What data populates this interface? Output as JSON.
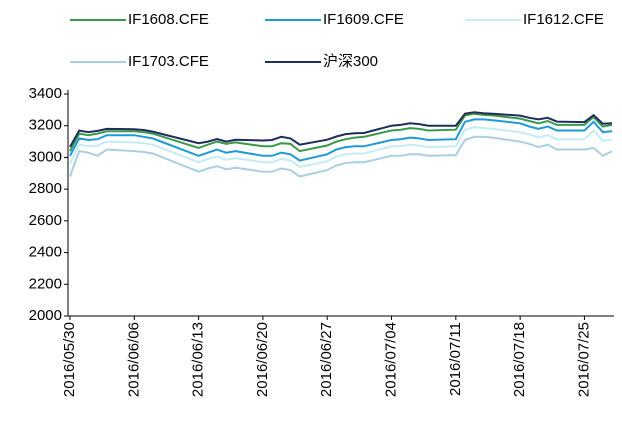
{
  "chart_data": {
    "type": "line",
    "x": [
      "2016/05/30",
      "2016/05/31",
      "2016/06/01",
      "2016/06/02",
      "2016/06/03",
      "2016/06/06",
      "2016/06/07",
      "2016/06/08",
      "2016/06/13",
      "2016/06/14",
      "2016/06/15",
      "2016/06/16",
      "2016/06/17",
      "2016/06/20",
      "2016/06/21",
      "2016/06/22",
      "2016/06/23",
      "2016/06/24",
      "2016/06/27",
      "2016/06/28",
      "2016/06/29",
      "2016/06/30",
      "2016/07/01",
      "2016/07/04",
      "2016/07/05",
      "2016/07/06",
      "2016/07/07",
      "2016/07/08",
      "2016/07/11",
      "2016/07/12",
      "2016/07/13",
      "2016/07/14",
      "2016/07/15",
      "2016/07/18",
      "2016/07/19",
      "2016/07/20",
      "2016/07/21",
      "2016/07/22",
      "2016/07/25",
      "2016/07/26",
      "2016/07/27",
      "2016/07/28"
    ],
    "xlim": [
      "2016/05/30",
      "2016/07/28"
    ],
    "xticks": [
      "2016/05/30",
      "2016/06/06",
      "2016/06/13",
      "2016/06/20",
      "2016/06/27",
      "2016/07/04",
      "2016/07/11",
      "2016/07/18",
      "2016/07/25"
    ],
    "ylim": [
      2000,
      3400
    ],
    "yticks": [
      2000,
      2200,
      2400,
      2600,
      2800,
      3000,
      3200,
      3400
    ],
    "series": [
      {
        "name": "IF1608.CFE",
        "color": "#3a9a4a",
        "values": [
          3040,
          3150,
          3140,
          3150,
          3165,
          3165,
          3160,
          3150,
          3060,
          3080,
          3100,
          3085,
          3095,
          3070,
          3070,
          3090,
          3085,
          3040,
          3075,
          3100,
          3115,
          3125,
          3130,
          3170,
          3175,
          3185,
          3180,
          3170,
          3175,
          3265,
          3275,
          3268,
          3265,
          3245,
          3230,
          3215,
          3230,
          3205,
          3205,
          3255,
          3195,
          3205
        ]
      },
      {
        "name": "IF1609.CFE",
        "color": "#1e9bd7",
        "values": [
          3010,
          3120,
          3110,
          3115,
          3140,
          3140,
          3130,
          3120,
          3010,
          3030,
          3050,
          3030,
          3040,
          3010,
          3010,
          3030,
          3020,
          2980,
          3020,
          3050,
          3065,
          3070,
          3070,
          3110,
          3115,
          3125,
          3120,
          3110,
          3115,
          3225,
          3240,
          3240,
          3235,
          3215,
          3195,
          3180,
          3195,
          3170,
          3170,
          3225,
          3160,
          3165
        ]
      },
      {
        "name": "IF1612.CFE",
        "color": "#c4ecf3",
        "values": [
          2960,
          3080,
          3070,
          3075,
          3100,
          3095,
          3090,
          3080,
          2970,
          2990,
          3005,
          2985,
          2995,
          2970,
          2970,
          2990,
          2980,
          2940,
          2975,
          3005,
          3020,
          3025,
          3025,
          3070,
          3070,
          3080,
          3075,
          3065,
          3070,
          3175,
          3190,
          3185,
          3180,
          3160,
          3145,
          3125,
          3140,
          3115,
          3115,
          3170,
          3105,
          3110
        ]
      },
      {
        "name": "IF1703.CFE",
        "color": "#a9cfe0",
        "values": [
          2880,
          3040,
          3030,
          3010,
          3050,
          3040,
          3035,
          3025,
          2910,
          2930,
          2945,
          2925,
          2935,
          2910,
          2910,
          2930,
          2920,
          2880,
          2920,
          2950,
          2965,
          2970,
          2970,
          3010,
          3010,
          3020,
          3020,
          3010,
          3015,
          3110,
          3130,
          3130,
          3125,
          3100,
          3085,
          3065,
          3080,
          3050,
          3050,
          3060,
          3010,
          3040
        ]
      },
      {
        "name": "沪深300",
        "color": "#1f2d5c",
        "values": [
          3066,
          3169,
          3160,
          3167,
          3180,
          3178,
          3173,
          3163,
          3090,
          3100,
          3116,
          3100,
          3111,
          3107,
          3110,
          3130,
          3120,
          3080,
          3112,
          3132,
          3147,
          3153,
          3154,
          3200,
          3205,
          3215,
          3210,
          3200,
          3200,
          3276,
          3285,
          3278,
          3275,
          3264,
          3250,
          3240,
          3250,
          3226,
          3223,
          3266,
          3213,
          3216
        ]
      }
    ]
  }
}
